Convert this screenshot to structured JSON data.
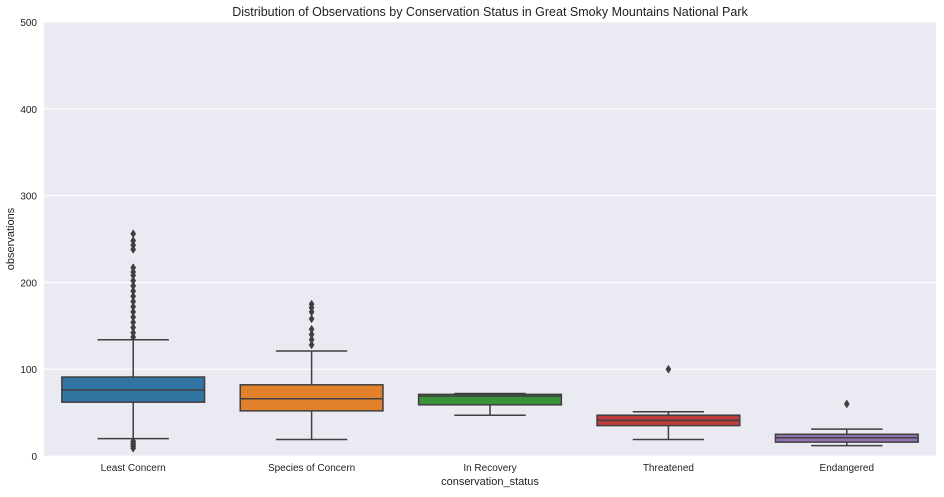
{
  "chart_data": {
    "type": "box",
    "title": "Distribution of Observations by Conservation Status in Great Smoky Mountains National Park",
    "xlabel": "conservation_status",
    "ylabel": "observations",
    "ylim": [
      0,
      500
    ],
    "yticks": [
      0,
      100,
      200,
      300,
      400,
      500
    ],
    "grid": true,
    "background": "#eaeaf2",
    "categories": [
      "Least Concern",
      "Species of Concern",
      "In Recovery",
      "Threatened",
      "Endangered"
    ],
    "boxes": [
      {
        "category": "Least Concern",
        "color": "#3274a1",
        "whisker_low": 20,
        "q1": 62,
        "median": 76,
        "q3": 91,
        "whisker_high": 134,
        "outliers": [
          9,
          11,
          13,
          15,
          17,
          137,
          142,
          148,
          154,
          160,
          166,
          172,
          178,
          184,
          190,
          196,
          202,
          208,
          212,
          217,
          238,
          243,
          248,
          256
        ]
      },
      {
        "category": "Species of Concern",
        "color": "#e1812c",
        "whisker_low": 19,
        "q1": 52,
        "median": 66,
        "q3": 82,
        "whisker_high": 121,
        "outliers": [
          128,
          134,
          140,
          146,
          158,
          166,
          171,
          175
        ]
      },
      {
        "category": "In Recovery",
        "color": "#3a923a",
        "whisker_low": 47,
        "q1": 59,
        "median": 69,
        "q3": 71,
        "whisker_high": 72,
        "outliers": []
      },
      {
        "category": "Threatened",
        "color": "#c03d3e",
        "whisker_low": 19,
        "q1": 35,
        "median": 41,
        "q3": 47,
        "whisker_high": 51,
        "outliers": [
          100
        ]
      },
      {
        "category": "Endangered",
        "color": "#9372b2",
        "whisker_low": 12,
        "q1": 16,
        "median": 21,
        "q3": 25,
        "whisker_high": 31,
        "outliers": [
          60
        ]
      }
    ]
  }
}
